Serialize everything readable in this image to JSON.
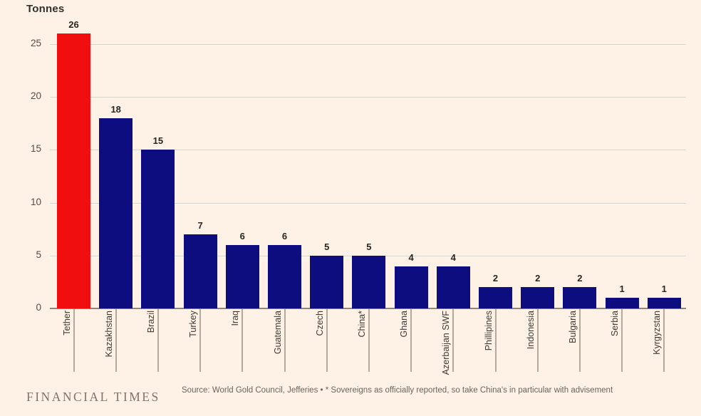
{
  "chart_data": {
    "type": "bar",
    "title": "Tonnes",
    "categories": [
      "Tether",
      "Kazakhstan",
      "Brazil",
      "Turkey",
      "Iraq",
      "Guatemala",
      "Czech",
      "China*",
      "Ghana",
      "Azerbaijan SWF",
      "Phillipines",
      "Indonesia",
      "Bulgaria",
      "Serbia",
      "Kyrgyzstan"
    ],
    "values": [
      26,
      18,
      15,
      7,
      6,
      6,
      5,
      5,
      4,
      4,
      2,
      2,
      2,
      1,
      1
    ],
    "ylabel": "Tonnes",
    "xlabel": "",
    "yticks": [
      0,
      5,
      10,
      15,
      20,
      25
    ],
    "ylim": [
      0,
      27
    ],
    "grid": true,
    "legend": "none",
    "highlight_category": "Tether",
    "colors": {
      "bar": "#0d0d80",
      "highlight": "#f10e0e",
      "background": "#fdf2e5"
    }
  },
  "footer": {
    "brand": "FINANCIAL TIMES",
    "source": "Source: World Gold Council, Jefferies • * Sovereigns as officially reported, so take China's in particular with advisement"
  }
}
